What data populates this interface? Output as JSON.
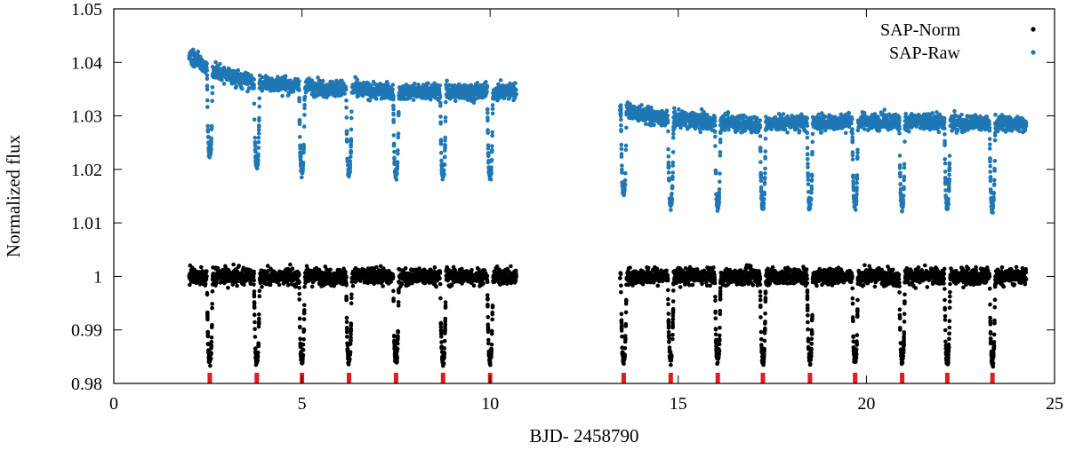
{
  "chart_data": {
    "type": "scatter",
    "xlabel": "BJD- 2458790",
    "ylabel": "Normalized flux",
    "xlim": [
      0,
      25
    ],
    "ylim": [
      0.98,
      1.05
    ],
    "xticks": [
      0,
      5,
      10,
      15,
      20,
      25
    ],
    "yticks": [
      0.98,
      0.99,
      1.0,
      1.01,
      1.02,
      1.03,
      1.04,
      1.05
    ],
    "xtick_labels": [
      "0",
      "5",
      "10",
      "15",
      "20",
      "25"
    ],
    "ytick_labels": [
      "0.98",
      "0.99",
      "1",
      "1.01",
      "1.02",
      "1.03",
      "1.04",
      "1.05"
    ],
    "grid": false,
    "legend_position": "top-right",
    "segments": [
      [
        2.0,
        10.7
      ],
      [
        13.45,
        24.25
      ]
    ],
    "series": [
      {
        "name": "SAP-Norm",
        "color": "#000000",
        "baseline": [
          [
            2.0,
            1.0
          ],
          [
            24.25,
            1.0
          ]
        ],
        "scatter": 0.0014,
        "transit_bottom": 0.985
      },
      {
        "name": "SAP-Raw",
        "color": "#1f77b4",
        "baseline": [
          [
            2.0,
            1.0415
          ],
          [
            2.6,
            1.0385
          ],
          [
            3.5,
            1.0365
          ],
          [
            5.0,
            1.0355
          ],
          [
            7.5,
            1.0345
          ],
          [
            10.7,
            1.0345
          ],
          [
            13.45,
            1.0315
          ],
          [
            14.5,
            1.0295
          ],
          [
            17.0,
            1.0285
          ],
          [
            20.0,
            1.029
          ],
          [
            24.25,
            1.0285
          ]
        ],
        "scatter": 0.0014,
        "transit_bottom": 1.019
      }
    ],
    "transits": [
      2.55,
      3.8,
      5.0,
      6.25,
      7.5,
      8.75,
      10.0,
      13.55,
      14.8,
      16.05,
      17.25,
      18.5,
      19.7,
      20.95,
      22.15,
      23.35
    ],
    "transit_depth": 0.0155,
    "transit_marker_color": "#e41a1c"
  }
}
